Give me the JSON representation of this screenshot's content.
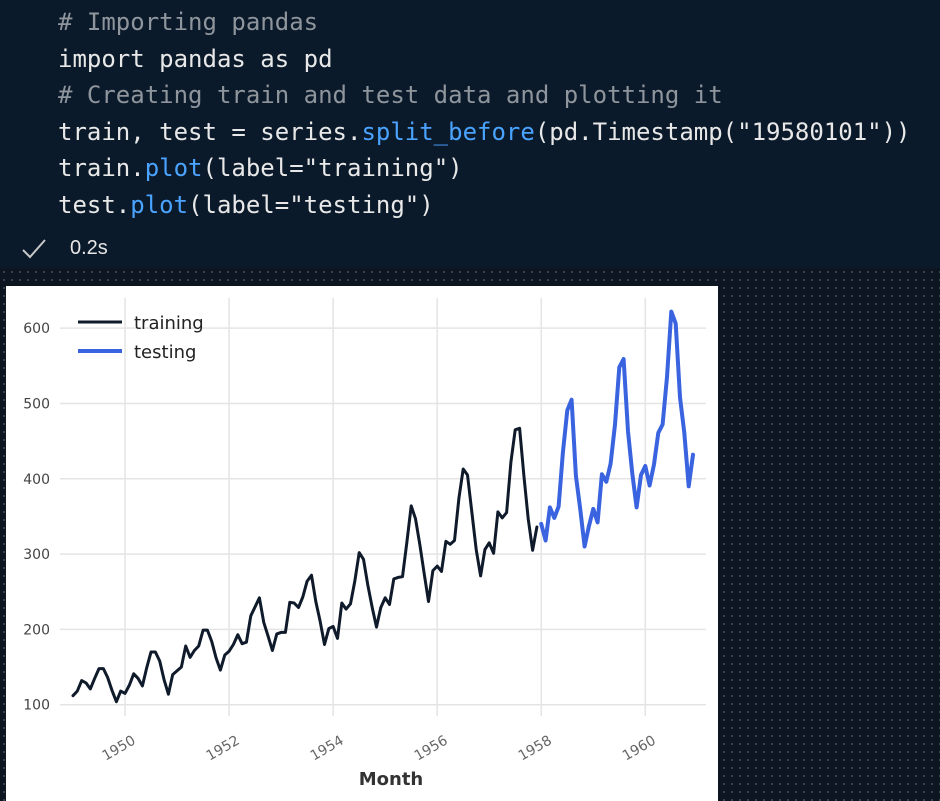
{
  "code_cell": {
    "lines": [
      [
        {
          "t": "# Importing pandas",
          "c": "comment"
        }
      ],
      [
        {
          "t": "import pandas as pd",
          "c": "plain"
        }
      ],
      [
        {
          "t": "# Creating train and test data and plotting it",
          "c": "comment"
        }
      ],
      [
        {
          "t": "train, test = series.",
          "c": "plain"
        },
        {
          "t": "split_before",
          "c": "func"
        },
        {
          "t": "(pd.Timestamp(\"19580101\"))",
          "c": "plain"
        }
      ],
      [
        {
          "t": "train.",
          "c": "plain"
        },
        {
          "t": "plot",
          "c": "func"
        },
        {
          "t": "(label=\"training\")",
          "c": "plain"
        }
      ],
      [
        {
          "t": "test.",
          "c": "plain"
        },
        {
          "t": "plot",
          "c": "func"
        },
        {
          "t": "(label=\"testing\")",
          "c": "plain"
        }
      ]
    ]
  },
  "status": {
    "icon": "check-icon",
    "exec_time": "0.2s"
  },
  "colors": {
    "training": "#0f1a2b",
    "testing": "#3a63e0",
    "grid": "#e4e4e4"
  },
  "chart_data": {
    "type": "line",
    "title": "",
    "xlabel": "Month",
    "ylabel": "",
    "x_tick_labels": [
      "1950",
      "1952",
      "1954",
      "1956",
      "1958",
      "1960"
    ],
    "y_ticks": [
      100,
      200,
      300,
      400,
      500,
      600
    ],
    "xlim": [
      "1948-10",
      "1961-03"
    ],
    "ylim": [
      85,
      640
    ],
    "grid": true,
    "legend_position": "top-left",
    "series": [
      {
        "name": "training",
        "start": "1949-01",
        "values": [
          112,
          118,
          132,
          129,
          121,
          135,
          148,
          148,
          136,
          119,
          104,
          118,
          115,
          126,
          141,
          135,
          125,
          149,
          170,
          170,
          158,
          133,
          114,
          140,
          145,
          150,
          178,
          163,
          172,
          178,
          199,
          199,
          184,
          162,
          146,
          166,
          171,
          180,
          193,
          181,
          183,
          218,
          230,
          242,
          209,
          191,
          172,
          194,
          196,
          196,
          236,
          235,
          229,
          243,
          264,
          272,
          237,
          211,
          180,
          201,
          204,
          188,
          235,
          227,
          234,
          264,
          302,
          293,
          259,
          229,
          203,
          229,
          242,
          233,
          267,
          269,
          270,
          315,
          364,
          347,
          312,
          274,
          237,
          278,
          284,
          277,
          317,
          313,
          318,
          374,
          413,
          405,
          355,
          306,
          271,
          306,
          315,
          301,
          356,
          348,
          355,
          422,
          465,
          467,
          404,
          347,
          305,
          336
        ]
      },
      {
        "name": "testing",
        "start": "1958-01",
        "values": [
          340,
          318,
          362,
          348,
          363,
          435,
          491,
          505,
          404,
          359,
          310,
          337,
          360,
          342,
          406,
          396,
          420,
          472,
          548,
          559,
          463,
          407,
          362,
          405,
          417,
          391,
          419,
          461,
          472,
          535,
          622,
          606,
          508,
          461,
          390,
          432
        ]
      }
    ]
  }
}
